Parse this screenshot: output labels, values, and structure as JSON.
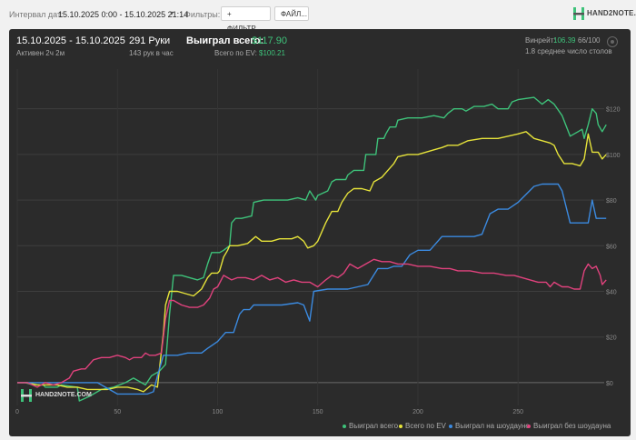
{
  "topbar": {
    "interval_label": "Интервал дат:",
    "interval_value": "15.10.2025 0:00 - 15.10.2025 21:14",
    "filters_label": "Фильтры:",
    "filter_button": "+ ФИЛЬТР...",
    "file_button": "ФАЙЛ...",
    "logo_text": "HAND2NOTE.COM"
  },
  "summary": {
    "date_range": "15.10.2025 - 15.10.2025",
    "active": "Активен 2ч 2м",
    "hands": "291 Руки",
    "hands_per_hour": "143 рук в час",
    "won_label": "Выиграл всего:",
    "won_value": "$117.90",
    "ev_label": "Всего по EV:",
    "ev_value": "$100.21",
    "winrate_label": "Винрейт:",
    "winrate_value": "106.39",
    "winrate_rest": "66/100",
    "avg_tables": "1.8 среднее число столов"
  },
  "watermark": "HAND2NOTE.COM",
  "chart_data": {
    "type": "line",
    "xlim": [
      0,
      293
    ],
    "ylim": [
      -10,
      135
    ],
    "x_ticks": [
      0,
      50,
      100,
      150,
      200,
      250
    ],
    "y_ticks": [
      0,
      20,
      40,
      60,
      80,
      100,
      120
    ],
    "y_tick_labels": [
      "$0",
      "$20",
      "$40",
      "$60",
      "$80",
      "$100",
      "$120"
    ],
    "series": [
      {
        "name": "Выиграл всего",
        "color": "#3ec27a",
        "points": [
          [
            0,
            0
          ],
          [
            4,
            0
          ],
          [
            8,
            -1
          ],
          [
            13,
            -1
          ],
          [
            14,
            -2
          ],
          [
            20,
            -2
          ],
          [
            22,
            -1
          ],
          [
            30,
            -2
          ],
          [
            31,
            -8
          ],
          [
            36,
            -6
          ],
          [
            42,
            -3
          ],
          [
            48,
            -2
          ],
          [
            54,
            0
          ],
          [
            58,
            2
          ],
          [
            64,
            -1
          ],
          [
            67,
            3
          ],
          [
            71,
            5
          ],
          [
            74,
            8
          ],
          [
            76,
            30
          ],
          [
            78,
            47
          ],
          [
            82,
            47
          ],
          [
            86,
            46
          ],
          [
            90,
            45
          ],
          [
            93,
            46
          ],
          [
            95,
            52
          ],
          [
            97,
            57
          ],
          [
            101,
            57
          ],
          [
            103,
            58
          ],
          [
            106,
            60
          ],
          [
            107,
            70
          ],
          [
            109,
            72
          ],
          [
            112,
            72
          ],
          [
            117,
            73
          ],
          [
            118,
            79
          ],
          [
            123,
            80
          ],
          [
            128,
            80
          ],
          [
            135,
            80
          ],
          [
            140,
            81
          ],
          [
            144,
            80
          ],
          [
            146,
            84
          ],
          [
            149,
            80
          ],
          [
            150,
            82
          ],
          [
            155,
            84
          ],
          [
            157,
            88
          ],
          [
            159,
            89
          ],
          [
            164,
            89
          ],
          [
            165,
            91
          ],
          [
            168,
            93
          ],
          [
            173,
            93
          ],
          [
            174,
            100
          ],
          [
            179,
            100
          ],
          [
            180,
            107
          ],
          [
            183,
            107
          ],
          [
            184,
            109
          ],
          [
            186,
            112
          ],
          [
            189,
            112
          ],
          [
            190,
            115
          ],
          [
            195,
            116
          ],
          [
            202,
            116
          ],
          [
            208,
            117
          ],
          [
            213,
            116
          ],
          [
            215,
            118
          ],
          [
            218,
            120
          ],
          [
            222,
            120
          ],
          [
            224,
            119
          ],
          [
            228,
            121
          ],
          [
            233,
            121
          ],
          [
            237,
            122
          ],
          [
            240,
            120
          ],
          [
            245,
            120
          ],
          [
            247,
            123
          ],
          [
            250,
            124
          ],
          [
            258,
            125
          ],
          [
            262,
            122
          ],
          [
            265,
            124
          ],
          [
            268,
            122
          ],
          [
            272,
            117
          ],
          [
            276,
            108
          ],
          [
            280,
            110
          ],
          [
            282,
            111
          ],
          [
            283,
            107
          ],
          [
            285,
            113
          ],
          [
            287,
            120
          ],
          [
            289,
            118
          ],
          [
            290,
            113
          ],
          [
            292,
            110
          ],
          [
            294,
            113
          ]
        ]
      },
      {
        "name": "Всего по EV",
        "color": "#e6e33a",
        "points": [
          [
            0,
            0
          ],
          [
            5,
            0
          ],
          [
            10,
            -1
          ],
          [
            15,
            -1
          ],
          [
            20,
            -1
          ],
          [
            25,
            -2
          ],
          [
            30,
            -2
          ],
          [
            35,
            -3
          ],
          [
            40,
            -3
          ],
          [
            45,
            -3
          ],
          [
            50,
            -2
          ],
          [
            55,
            -2
          ],
          [
            60,
            -3
          ],
          [
            63,
            -4
          ],
          [
            67,
            -1
          ],
          [
            70,
            -2
          ],
          [
            73,
            22
          ],
          [
            74,
            34
          ],
          [
            76,
            40
          ],
          [
            80,
            40
          ],
          [
            84,
            39
          ],
          [
            88,
            38
          ],
          [
            92,
            41
          ],
          [
            95,
            46
          ],
          [
            97,
            48
          ],
          [
            100,
            48
          ],
          [
            101,
            49
          ],
          [
            103,
            55
          ],
          [
            105,
            58
          ],
          [
            106,
            60
          ],
          [
            110,
            60
          ],
          [
            115,
            61
          ],
          [
            119,
            64
          ],
          [
            122,
            62
          ],
          [
            127,
            62
          ],
          [
            131,
            63
          ],
          [
            137,
            63
          ],
          [
            140,
            64
          ],
          [
            143,
            62
          ],
          [
            145,
            59
          ],
          [
            148,
            60
          ],
          [
            150,
            62
          ],
          [
            154,
            70
          ],
          [
            157,
            75
          ],
          [
            160,
            75
          ],
          [
            162,
            79
          ],
          [
            165,
            83
          ],
          [
            168,
            85
          ],
          [
            172,
            85
          ],
          [
            176,
            84
          ],
          [
            178,
            88
          ],
          [
            182,
            90
          ],
          [
            185,
            93
          ],
          [
            188,
            96
          ],
          [
            190,
            99
          ],
          [
            195,
            100
          ],
          [
            200,
            100
          ],
          [
            208,
            102
          ],
          [
            212,
            103
          ],
          [
            215,
            104
          ],
          [
            220,
            104
          ],
          [
            225,
            106
          ],
          [
            232,
            107
          ],
          [
            240,
            107
          ],
          [
            245,
            108
          ],
          [
            250,
            109
          ],
          [
            254,
            110
          ],
          [
            258,
            107
          ],
          [
            262,
            106
          ],
          [
            266,
            105
          ],
          [
            268,
            104
          ],
          [
            270,
            100
          ],
          [
            273,
            96
          ],
          [
            277,
            96
          ],
          [
            281,
            95
          ],
          [
            283,
            98
          ],
          [
            285,
            109
          ],
          [
            287,
            101
          ],
          [
            290,
            101
          ],
          [
            292,
            98
          ],
          [
            294,
            100
          ]
        ]
      },
      {
        "name": "Выиграл на шоудауне",
        "color": "#3b8ae0",
        "points": [
          [
            0,
            0
          ],
          [
            40,
            0
          ],
          [
            50,
            -5
          ],
          [
            60,
            -5
          ],
          [
            65,
            -5
          ],
          [
            68,
            -4
          ],
          [
            70,
            3
          ],
          [
            73,
            12
          ],
          [
            80,
            12
          ],
          [
            85,
            13
          ],
          [
            92,
            13
          ],
          [
            95,
            15
          ],
          [
            100,
            18
          ],
          [
            104,
            22
          ],
          [
            108,
            22
          ],
          [
            111,
            30
          ],
          [
            113,
            32
          ],
          [
            116,
            32
          ],
          [
            118,
            34
          ],
          [
            126,
            34
          ],
          [
            132,
            34
          ],
          [
            140,
            35
          ],
          [
            143,
            34
          ],
          [
            146,
            27
          ],
          [
            148,
            40
          ],
          [
            155,
            41
          ],
          [
            162,
            41
          ],
          [
            165,
            41
          ],
          [
            170,
            42
          ],
          [
            175,
            43
          ],
          [
            180,
            50
          ],
          [
            185,
            50
          ],
          [
            188,
            51
          ],
          [
            192,
            51
          ],
          [
            196,
            56
          ],
          [
            200,
            58
          ],
          [
            206,
            58
          ],
          [
            212,
            64
          ],
          [
            218,
            64
          ],
          [
            224,
            64
          ],
          [
            228,
            64
          ],
          [
            232,
            65
          ],
          [
            236,
            74
          ],
          [
            240,
            76
          ],
          [
            245,
            76
          ],
          [
            250,
            79
          ],
          [
            258,
            86
          ],
          [
            262,
            87
          ],
          [
            270,
            87
          ],
          [
            272,
            84
          ],
          [
            276,
            70
          ],
          [
            281,
            70
          ],
          [
            285,
            70
          ],
          [
            287,
            80
          ],
          [
            289,
            72
          ],
          [
            292,
            72
          ],
          [
            294,
            72
          ]
        ]
      },
      {
        "name": "Выиграл без шоудауна",
        "color": "#e0427d",
        "points": [
          [
            0,
            0
          ],
          [
            5,
            0
          ],
          [
            10,
            -2
          ],
          [
            14,
            0
          ],
          [
            18,
            -1
          ],
          [
            22,
            0
          ],
          [
            26,
            2
          ],
          [
            28,
            5
          ],
          [
            32,
            6
          ],
          [
            34,
            6
          ],
          [
            36,
            8
          ],
          [
            38,
            10
          ],
          [
            42,
            11
          ],
          [
            46,
            11
          ],
          [
            50,
            12
          ],
          [
            54,
            11
          ],
          [
            56,
            10
          ],
          [
            58,
            11
          ],
          [
            60,
            11
          ],
          [
            62,
            11
          ],
          [
            64,
            13
          ],
          [
            66,
            12
          ],
          [
            69,
            12
          ],
          [
            72,
            13
          ],
          [
            74,
            28
          ],
          [
            76,
            36
          ],
          [
            78,
            36
          ],
          [
            82,
            34
          ],
          [
            86,
            33
          ],
          [
            90,
            33
          ],
          [
            93,
            34
          ],
          [
            96,
            37
          ],
          [
            98,
            41
          ],
          [
            100,
            42
          ],
          [
            103,
            47
          ],
          [
            107,
            45
          ],
          [
            110,
            46
          ],
          [
            114,
            46
          ],
          [
            118,
            45
          ],
          [
            122,
            47
          ],
          [
            126,
            45
          ],
          [
            130,
            46
          ],
          [
            134,
            44
          ],
          [
            138,
            45
          ],
          [
            142,
            44
          ],
          [
            146,
            44
          ],
          [
            150,
            42
          ],
          [
            154,
            45
          ],
          [
            157,
            47
          ],
          [
            160,
            46
          ],
          [
            163,
            48
          ],
          [
            166,
            52
          ],
          [
            170,
            50
          ],
          [
            174,
            52
          ],
          [
            178,
            54
          ],
          [
            182,
            53
          ],
          [
            186,
            53
          ],
          [
            190,
            52
          ],
          [
            195,
            52
          ],
          [
            200,
            51
          ],
          [
            206,
            51
          ],
          [
            212,
            50
          ],
          [
            216,
            50
          ],
          [
            220,
            49
          ],
          [
            226,
            49
          ],
          [
            232,
            48
          ],
          [
            238,
            48
          ],
          [
            244,
            47
          ],
          [
            248,
            47
          ],
          [
            252,
            46
          ],
          [
            256,
            45
          ],
          [
            260,
            44
          ],
          [
            264,
            44
          ],
          [
            266,
            42
          ],
          [
            268,
            44
          ],
          [
            270,
            43
          ],
          [
            272,
            42
          ],
          [
            275,
            42
          ],
          [
            278,
            41
          ],
          [
            281,
            41
          ],
          [
            283,
            49
          ],
          [
            285,
            52
          ],
          [
            287,
            50
          ],
          [
            289,
            51
          ],
          [
            291,
            47
          ],
          [
            292,
            43
          ],
          [
            294,
            45
          ]
        ]
      }
    ]
  }
}
